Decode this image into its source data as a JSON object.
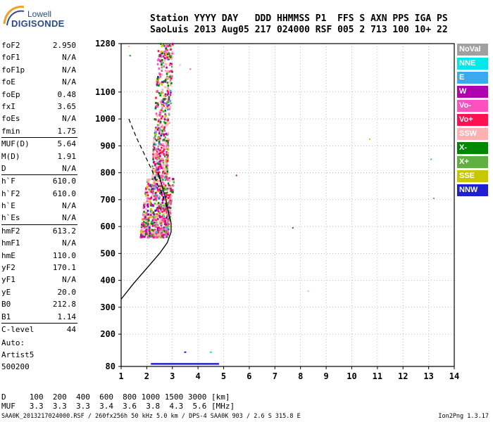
{
  "logo": {
    "line1": "Lowell",
    "line2": "DIGISONDE"
  },
  "header": {
    "line1": "Station YYYY DAY   DDD HHMMSS P1  FFS S AXN PPS IGA PS",
    "line2": "SaoLuis 2013 Aug05 217 024000 RSF 005 2 713 100 10+ 22"
  },
  "params": [
    [
      {
        "label": "foF2",
        "value": "2.950"
      },
      {
        "label": "foF1",
        "value": "N/A"
      },
      {
        "label": "foF1p",
        "value": "N/A"
      },
      {
        "label": "foE",
        "value": "N/A"
      },
      {
        "label": "foEp",
        "value": "0.48"
      },
      {
        "label": "fxI",
        "value": "3.65"
      },
      {
        "label": "foEs",
        "value": "N/A"
      },
      {
        "label": "fmin",
        "value": "1.75"
      }
    ],
    [
      {
        "label": "MUF(D)",
        "value": "5.64"
      },
      {
        "label": "M(D)",
        "value": "1.91"
      },
      {
        "label": "D",
        "value": "N/A"
      }
    ],
    [
      {
        "label": "h`F",
        "value": "610.0"
      },
      {
        "label": "h`F2",
        "value": "610.0"
      },
      {
        "label": "h`E",
        "value": "N/A"
      },
      {
        "label": "h`Es",
        "value": "N/A"
      }
    ],
    [
      {
        "label": "hmF2",
        "value": "613.2"
      },
      {
        "label": "hmF1",
        "value": "N/A"
      },
      {
        "label": "hmE",
        "value": "110.0"
      },
      {
        "label": "yF2",
        "value": "170.1"
      },
      {
        "label": "yF1",
        "value": "N/A"
      },
      {
        "label": "yE",
        "value": "20.0"
      },
      {
        "label": "B0",
        "value": "212.8"
      },
      {
        "label": "B1",
        "value": "1.14"
      }
    ],
    [
      {
        "label": "C-level",
        "value": "44"
      }
    ]
  ],
  "auto": {
    "line1": "Auto:",
    "line2": "Artist5",
    "line3": "500200"
  },
  "legend": [
    {
      "label": "NoVal",
      "color": "#a0a0a0"
    },
    {
      "label": "NNE",
      "color": "#00e8e8"
    },
    {
      "label": "E",
      "color": "#3aaaf0"
    },
    {
      "label": "W",
      "color": "#b000b0"
    },
    {
      "label": "Vo-",
      "color": "#ff50c0"
    },
    {
      "label": "Vo+",
      "color": "#ff1050"
    },
    {
      "label": "SSW",
      "color": "#ffb0b0"
    },
    {
      "label": "X-",
      "color": "#008800"
    },
    {
      "label": "X+",
      "color": "#60b040"
    },
    {
      "label": "SSE",
      "color": "#c8c800"
    },
    {
      "label": "NNW",
      "color": "#2020d0"
    }
  ],
  "muf_table": {
    "line1": "D     100  200  400  600  800 1000 1500 3000 [km]",
    "line2": "MUF   3.3  3.3  3.3  3.4  3.6  3.8  4.3  5.6 [MHz]"
  },
  "footer": {
    "left": "SAA0K_2013217024000.RSF / 260fx256h 50 kHz 5.0 km / DPS-4 SAA0K 903 / 2.6 S 315.8 E",
    "right": "Ion2Png 1.3.17"
  },
  "chart_data": {
    "type": "scatter",
    "title": "",
    "xlabel": "",
    "ylabel": "",
    "xlim": [
      1,
      14
    ],
    "ylim": [
      80,
      1280
    ],
    "x_ticks": [
      1,
      2,
      3,
      4,
      5,
      6,
      7,
      8,
      9,
      10,
      11,
      12,
      13,
      14
    ],
    "y_ticks": [
      80,
      200,
      300,
      400,
      500,
      600,
      700,
      800,
      900,
      1000,
      1100,
      1280
    ],
    "grid": true,
    "profile_curve": [
      [
        1.0,
        330
      ],
      [
        1.5,
        390
      ],
      [
        2.0,
        445
      ],
      [
        2.5,
        500
      ],
      [
        2.8,
        540
      ],
      [
        2.95,
        580
      ],
      [
        2.95,
        613
      ],
      [
        2.85,
        650
      ],
      [
        2.75,
        700
      ],
      [
        2.6,
        750
      ],
      [
        2.45,
        800
      ]
    ],
    "dashed_curve": [
      [
        1.3,
        1000
      ],
      [
        1.6,
        930
      ],
      [
        1.9,
        870
      ],
      [
        2.2,
        810
      ],
      [
        2.4,
        760
      ],
      [
        2.6,
        720
      ],
      [
        2.75,
        680
      ],
      [
        2.9,
        640
      ]
    ],
    "echo_cluster": {
      "x_range": [
        1.6,
        3.1
      ],
      "y_range": [
        560,
        1280
      ]
    },
    "sporadic_points": [
      {
        "x": 1.3,
        "y": 1270,
        "color": "#ffb0b0"
      },
      {
        "x": 1.35,
        "y": 1235,
        "color": "#008800"
      },
      {
        "x": 3.3,
        "y": 1200,
        "color": "#ffb0b0"
      },
      {
        "x": 3.7,
        "y": 1185,
        "color": "#ff50c0"
      },
      {
        "x": 5.5,
        "y": 790,
        "color": "#b000b0"
      },
      {
        "x": 7.7,
        "y": 595,
        "color": "#008800"
      },
      {
        "x": 8.3,
        "y": 360,
        "color": "#ffb0b0"
      },
      {
        "x": 10.7,
        "y": 925,
        "color": "#c8c800"
      },
      {
        "x": 13.1,
        "y": 850,
        "color": "#3aaaf0"
      },
      {
        "x": 13.2,
        "y": 705,
        "color": "#60b040"
      }
    ],
    "low_layer": {
      "x_range": [
        2.2,
        4.8
      ],
      "y": 90,
      "color": "#2020d0"
    },
    "low_layer_extras": [
      {
        "x": 3.5,
        "y": 133,
        "color": "#2020d0"
      },
      {
        "x": 4.5,
        "y": 133,
        "color": "#00e8e8"
      }
    ]
  }
}
